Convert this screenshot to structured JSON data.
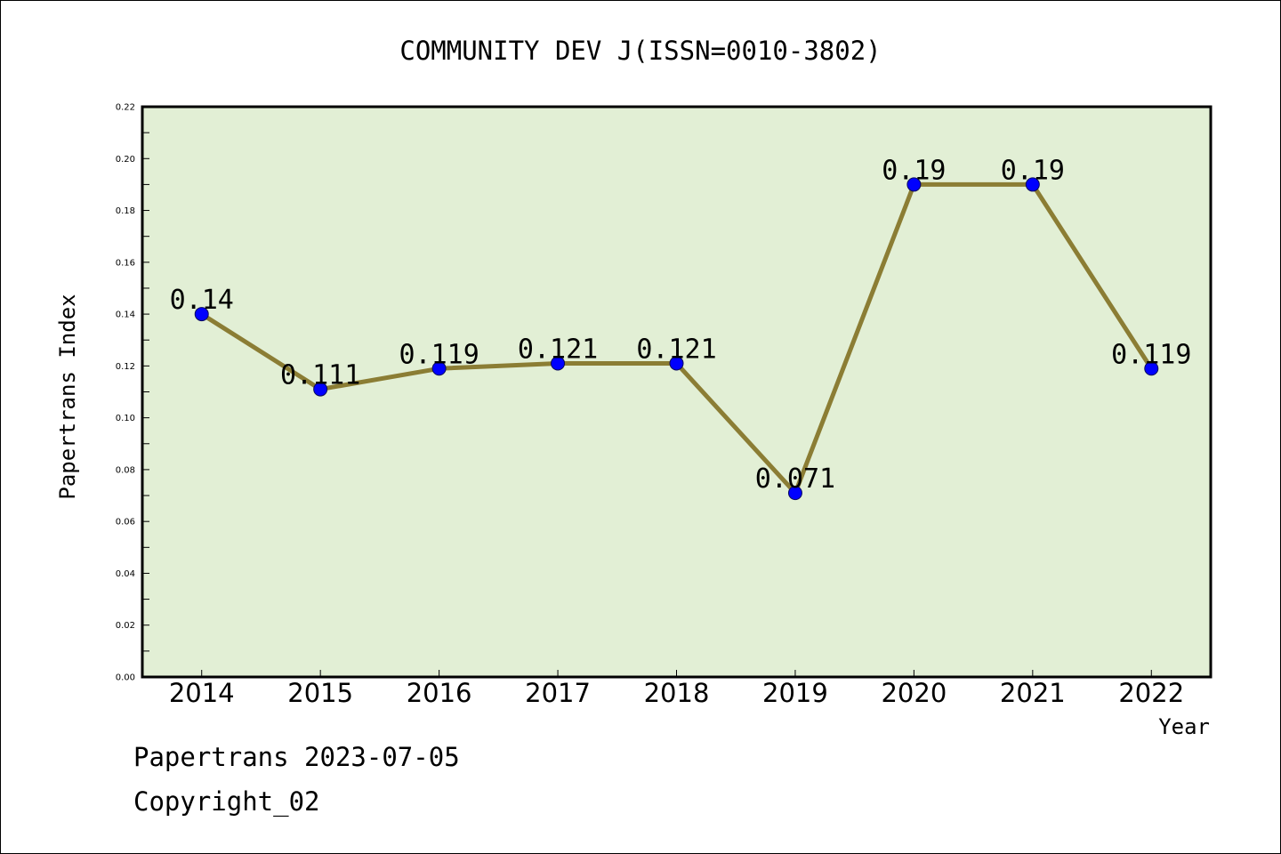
{
  "footer": {
    "line1": "Papertrans 2023-07-05",
    "line2": "Copyright_02"
  },
  "colors": {
    "plot_background": "#e2efd5",
    "line": "#8b7d34",
    "marker": "#0000ff",
    "marker_edge": "#0a0a5a"
  },
  "chart_data": {
    "type": "line",
    "title": "COMMUNITY DEV J(ISSN=0010-3802)",
    "xlabel": "Year",
    "ylabel": "Papertrans Index",
    "categories": [
      "2014",
      "2015",
      "2016",
      "2017",
      "2018",
      "2019",
      "2020",
      "2021",
      "2022"
    ],
    "series": [
      {
        "values": [
          0.14,
          0.111,
          0.119,
          0.121,
          0.121,
          0.071,
          0.19,
          0.19,
          0.119
        ],
        "labels": [
          "0.14",
          "0.111",
          "0.119",
          "0.121",
          "0.121",
          "0.071",
          "0.19",
          "0.19",
          "0.119"
        ]
      }
    ],
    "ylim": [
      0,
      0.22
    ],
    "yticks": [
      "0.00",
      "0.02",
      "0.04",
      "0.06",
      "0.08",
      "0.10",
      "0.12",
      "0.14",
      "0.16",
      "0.18",
      "0.20",
      "0.22"
    ],
    "grid": false,
    "legend": false
  }
}
